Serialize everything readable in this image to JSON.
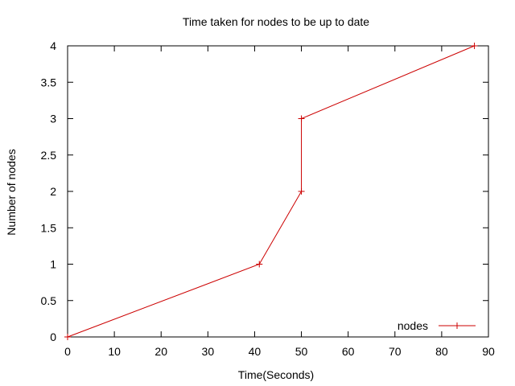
{
  "chart_data": {
    "type": "line",
    "title": "Time taken for nodes to be up to date",
    "xlabel": "Time(Seconds)",
    "ylabel": "Number of nodes",
    "xlim": [
      0,
      90
    ],
    "ylim": [
      0,
      4
    ],
    "xticks": [
      0,
      10,
      20,
      30,
      40,
      50,
      60,
      70,
      80,
      90
    ],
    "xtick_labels": [
      "0",
      "10",
      "20",
      "30",
      "40",
      "50",
      "60",
      "70",
      "80",
      "90"
    ],
    "yticks": [
      0,
      0.5,
      1,
      1.5,
      2,
      2.5,
      3,
      3.5,
      4
    ],
    "ytick_labels": [
      "0",
      "0.5",
      "1",
      "1.5",
      "2",
      "2.5",
      "3",
      "3.5",
      "4"
    ],
    "grid": false,
    "legend_position": "bottom-right",
    "series": [
      {
        "name": "nodes",
        "color": "#cc0000",
        "marker": "plus",
        "x": [
          0,
          41,
          50,
          50,
          87
        ],
        "y": [
          0,
          1,
          2,
          3,
          4
        ]
      }
    ]
  }
}
